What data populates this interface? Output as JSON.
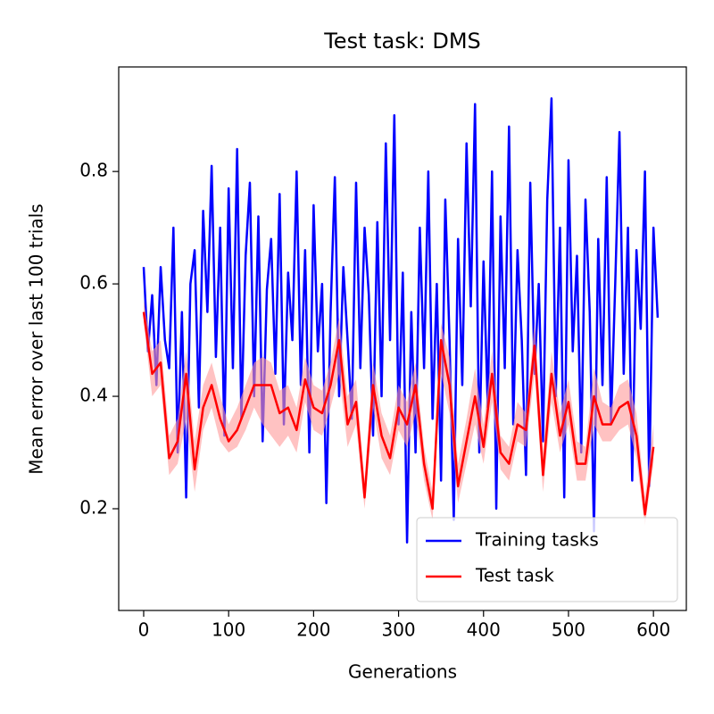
{
  "chart_data": {
    "type": "line",
    "title": "Test task: DMS",
    "x_label": "Generations",
    "y_label": "Mean error over last 100 trials",
    "xlim": [
      -29.4,
      638.7
    ],
    "ylim": [
      0.019,
      0.986
    ],
    "xticks": [
      0,
      100,
      200,
      300,
      400,
      500,
      600
    ],
    "yticks": [
      0.2,
      0.4,
      0.6,
      0.8
    ],
    "legend": "lower right",
    "series": [
      {
        "name": "Training tasks",
        "color": "#0000ff",
        "x": [
          0,
          5,
          10,
          15,
          20,
          25,
          30,
          35,
          40,
          45,
          50,
          55,
          60,
          65,
          70,
          75,
          80,
          85,
          90,
          95,
          100,
          105,
          110,
          115,
          120,
          125,
          130,
          135,
          140,
          145,
          150,
          155,
          160,
          165,
          170,
          175,
          180,
          185,
          190,
          195,
          200,
          205,
          210,
          215,
          220,
          225,
          230,
          235,
          240,
          245,
          250,
          255,
          260,
          265,
          270,
          275,
          280,
          285,
          290,
          295,
          300,
          305,
          310,
          315,
          320,
          325,
          330,
          335,
          340,
          345,
          350,
          355,
          360,
          365,
          370,
          375,
          380,
          385,
          390,
          395,
          400,
          405,
          410,
          415,
          420,
          425,
          430,
          435,
          440,
          445,
          450,
          455,
          460,
          465,
          470,
          475,
          480,
          485,
          490,
          495,
          500,
          505,
          510,
          515,
          520,
          525,
          530,
          535,
          540,
          545,
          550,
          555,
          560,
          565,
          570,
          575,
          580,
          585,
          590,
          595,
          600,
          605
        ],
        "values": [
          0.63,
          0.48,
          0.58,
          0.42,
          0.63,
          0.5,
          0.45,
          0.7,
          0.3,
          0.55,
          0.22,
          0.6,
          0.66,
          0.38,
          0.73,
          0.55,
          0.81,
          0.47,
          0.7,
          0.33,
          0.77,
          0.45,
          0.84,
          0.36,
          0.65,
          0.78,
          0.4,
          0.72,
          0.32,
          0.59,
          0.68,
          0.44,
          0.76,
          0.35,
          0.62,
          0.5,
          0.8,
          0.42,
          0.66,
          0.3,
          0.74,
          0.48,
          0.6,
          0.21,
          0.55,
          0.79,
          0.4,
          0.63,
          0.5,
          0.36,
          0.78,
          0.45,
          0.7,
          0.58,
          0.33,
          0.71,
          0.4,
          0.85,
          0.5,
          0.9,
          0.35,
          0.62,
          0.14,
          0.55,
          0.3,
          0.7,
          0.45,
          0.8,
          0.36,
          0.6,
          0.25,
          0.75,
          0.5,
          0.18,
          0.68,
          0.42,
          0.85,
          0.56,
          0.92,
          0.3,
          0.64,
          0.38,
          0.8,
          0.2,
          0.72,
          0.45,
          0.88,
          0.35,
          0.66,
          0.5,
          0.26,
          0.78,
          0.44,
          0.6,
          0.32,
          0.75,
          0.93,
          0.4,
          0.7,
          0.22,
          0.82,
          0.48,
          0.65,
          0.3,
          0.75,
          0.55,
          0.16,
          0.68,
          0.42,
          0.79,
          0.35,
          0.6,
          0.87,
          0.44,
          0.7,
          0.25,
          0.66,
          0.52,
          0.8,
          0.24,
          0.7,
          0.54
        ]
      },
      {
        "name": "Test task",
        "color": "#ff0000",
        "band_color": "#ff9999",
        "x": [
          0,
          10,
          20,
          30,
          40,
          50,
          60,
          70,
          80,
          90,
          100,
          110,
          120,
          130,
          140,
          150,
          160,
          170,
          180,
          190,
          200,
          210,
          220,
          230,
          240,
          250,
          260,
          270,
          280,
          290,
          300,
          310,
          320,
          330,
          340,
          350,
          360,
          370,
          380,
          390,
          400,
          410,
          420,
          430,
          440,
          450,
          460,
          470,
          480,
          490,
          500,
          510,
          520,
          530,
          540,
          550,
          560,
          570,
          580,
          590,
          600
        ],
        "values": [
          0.55,
          0.44,
          0.46,
          0.29,
          0.32,
          0.44,
          0.27,
          0.38,
          0.42,
          0.36,
          0.32,
          0.34,
          0.38,
          0.42,
          0.42,
          0.42,
          0.37,
          0.38,
          0.34,
          0.43,
          0.38,
          0.37,
          0.42,
          0.5,
          0.35,
          0.39,
          0.22,
          0.42,
          0.33,
          0.29,
          0.38,
          0.35,
          0.42,
          0.28,
          0.2,
          0.5,
          0.42,
          0.24,
          0.32,
          0.4,
          0.31,
          0.44,
          0.3,
          0.28,
          0.35,
          0.34,
          0.49,
          0.26,
          0.44,
          0.33,
          0.39,
          0.28,
          0.28,
          0.4,
          0.35,
          0.35,
          0.38,
          0.39,
          0.33,
          0.19,
          0.31
        ],
        "lower": [
          0.53,
          0.4,
          0.42,
          0.26,
          0.28,
          0.36,
          0.23,
          0.34,
          0.38,
          0.32,
          0.3,
          0.31,
          0.34,
          0.38,
          0.35,
          0.33,
          0.31,
          0.33,
          0.3,
          0.39,
          0.34,
          0.33,
          0.38,
          0.44,
          0.31,
          0.35,
          0.2,
          0.38,
          0.29,
          0.26,
          0.34,
          0.31,
          0.37,
          0.25,
          0.18,
          0.44,
          0.37,
          0.21,
          0.28,
          0.35,
          0.28,
          0.39,
          0.27,
          0.25,
          0.32,
          0.31,
          0.44,
          0.23,
          0.39,
          0.3,
          0.35,
          0.25,
          0.25,
          0.35,
          0.32,
          0.32,
          0.34,
          0.35,
          0.29,
          0.17,
          0.28
        ],
        "upper": [
          0.57,
          0.48,
          0.5,
          0.33,
          0.36,
          0.48,
          0.32,
          0.42,
          0.46,
          0.4,
          0.35,
          0.38,
          0.42,
          0.46,
          0.47,
          0.46,
          0.41,
          0.42,
          0.38,
          0.47,
          0.42,
          0.41,
          0.46,
          0.54,
          0.4,
          0.43,
          0.25,
          0.46,
          0.37,
          0.33,
          0.42,
          0.39,
          0.46,
          0.31,
          0.23,
          0.53,
          0.47,
          0.28,
          0.36,
          0.45,
          0.35,
          0.48,
          0.33,
          0.31,
          0.39,
          0.37,
          0.53,
          0.3,
          0.48,
          0.37,
          0.43,
          0.32,
          0.31,
          0.45,
          0.39,
          0.38,
          0.42,
          0.43,
          0.37,
          0.22,
          0.35
        ]
      }
    ]
  }
}
